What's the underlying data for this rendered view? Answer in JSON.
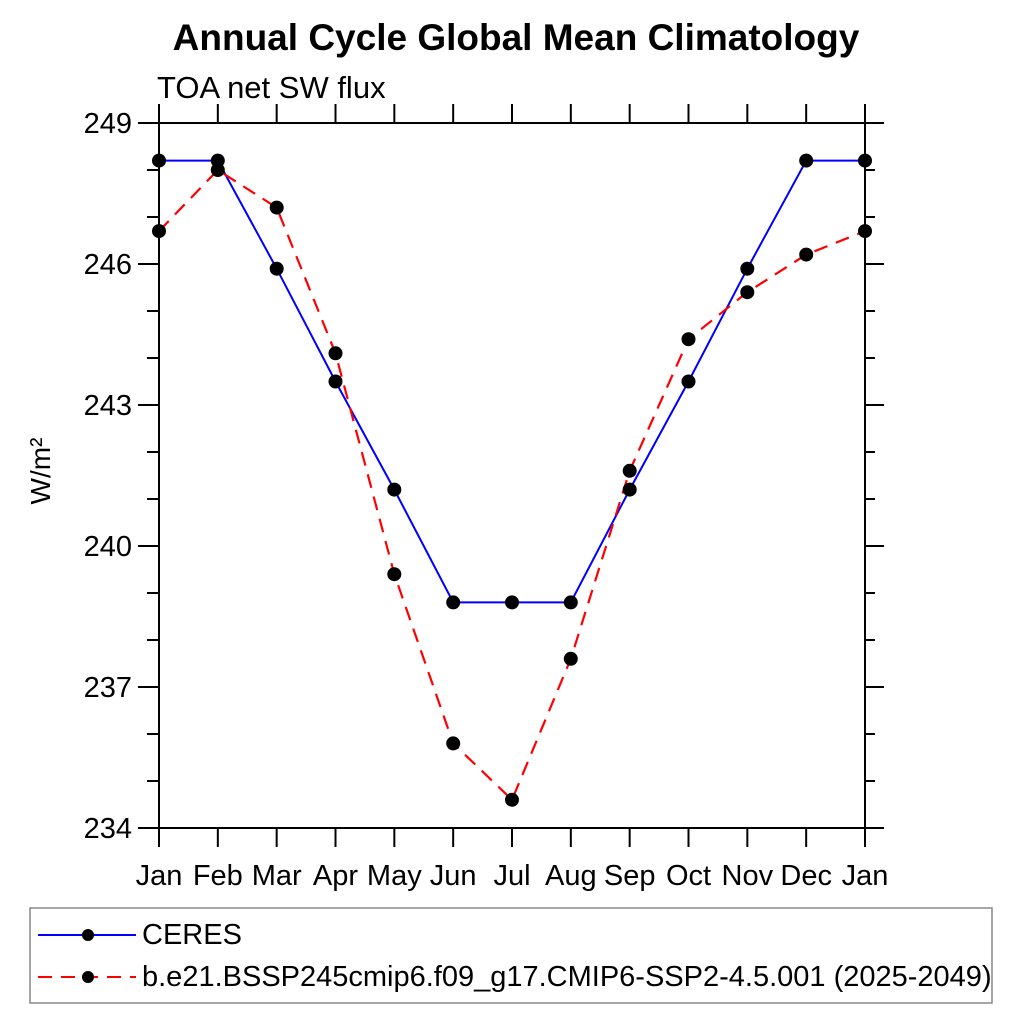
{
  "title": "Annual Cycle Global Mean Climatology",
  "subtitle": "TOA net SW flux",
  "ylabel": "W/m²",
  "colors": {
    "ceres_line": "#0000ff",
    "model_line": "#ff0000",
    "marker": "#000000",
    "axis": "#000000",
    "legend_border": "#888888",
    "background": "#ffffff"
  },
  "chart_data": {
    "type": "line",
    "title": "Annual Cycle Global Mean Climatology",
    "subtitle": "TOA net SW flux",
    "xlabel": "",
    "ylabel": "W/m²",
    "x": [
      "Jan",
      "Feb",
      "Mar",
      "Apr",
      "May",
      "Jun",
      "Jul",
      "Aug",
      "Sep",
      "Oct",
      "Nov",
      "Dec",
      "Jan"
    ],
    "ylim": [
      234,
      249
    ],
    "yticks_major": [
      249,
      246,
      243,
      240,
      237,
      234
    ],
    "yticks_minor_step": 1,
    "grid": false,
    "legend_position": "bottom box, full width",
    "series": [
      {
        "name": "CERES",
        "color": "#0000ff",
        "style": "solid",
        "marker": "circle",
        "values": [
          248.2,
          248.2,
          245.9,
          243.5,
          241.2,
          238.8,
          238.8,
          238.8,
          241.2,
          243.5,
          245.9,
          248.2,
          248.2
        ]
      },
      {
        "name": "b.e21.BSSP245cmip6.f09_g17.CMIP6-SSP2-4.5.001 (2025-2049)",
        "color": "#ff0000",
        "style": "dashed",
        "marker": "circle",
        "values": [
          246.7,
          248.0,
          247.2,
          244.1,
          239.4,
          235.8,
          234.6,
          237.6,
          241.6,
          244.4,
          245.4,
          246.2,
          246.7
        ]
      }
    ]
  }
}
